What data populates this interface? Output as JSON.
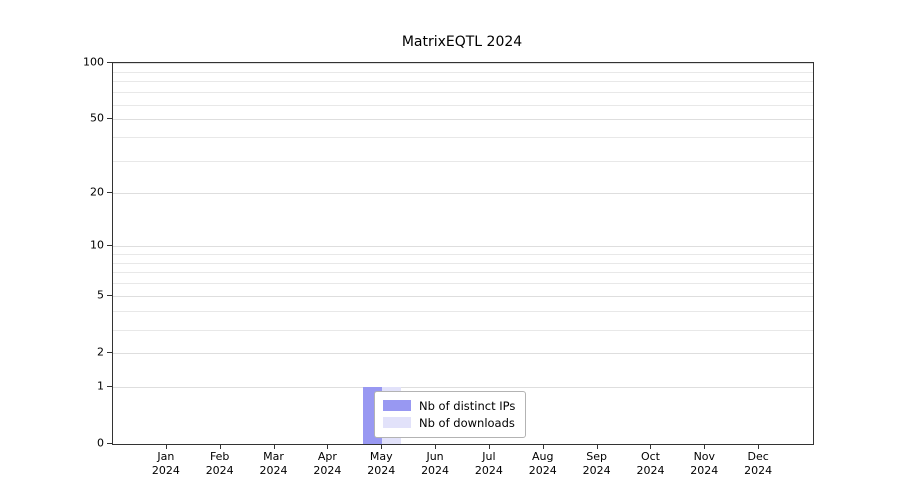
{
  "chart_data": {
    "type": "bar",
    "title": "MatrixEQTL 2024",
    "categories": [
      {
        "month": "Jan",
        "year": "2024"
      },
      {
        "month": "Feb",
        "year": "2024"
      },
      {
        "month": "Mar",
        "year": "2024"
      },
      {
        "month": "Apr",
        "year": "2024"
      },
      {
        "month": "May",
        "year": "2024"
      },
      {
        "month": "Jun",
        "year": "2024"
      },
      {
        "month": "Jul",
        "year": "2024"
      },
      {
        "month": "Aug",
        "year": "2024"
      },
      {
        "month": "Sep",
        "year": "2024"
      },
      {
        "month": "Oct",
        "year": "2024"
      },
      {
        "month": "Nov",
        "year": "2024"
      },
      {
        "month": "Dec",
        "year": "2024"
      }
    ],
    "series": [
      {
        "name": "Nb of distinct IPs",
        "color": "#9898f2",
        "values": [
          0,
          0,
          0,
          0,
          1,
          0,
          0,
          0,
          0,
          0,
          0,
          0
        ]
      },
      {
        "name": "Nb of downloads",
        "color": "#e2e2fa",
        "values": [
          0,
          0,
          0,
          0,
          1,
          0,
          0,
          0,
          0,
          0,
          0,
          0
        ]
      }
    ],
    "y_axis": {
      "scale": "log1p",
      "ticks": [
        0,
        1,
        2,
        5,
        10,
        20,
        50,
        100
      ],
      "min": 0,
      "max": 100
    },
    "xlabel": "",
    "ylabel": "",
    "grid": "horizontal-minor",
    "legend_position": "bottom-center-inside"
  }
}
